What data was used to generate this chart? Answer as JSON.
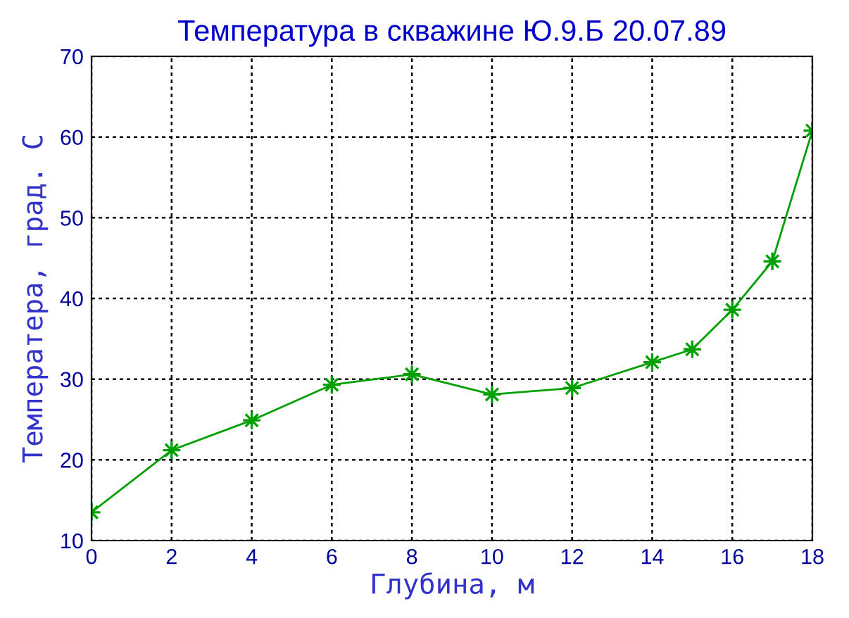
{
  "chart_data": {
    "type": "line",
    "title": "Температура в скважине Ю.9.Б 20.07.89",
    "xlabel": "Глубина, м",
    "ylabel": "Температера, град. С",
    "x": [
      0,
      2,
      4,
      6,
      8,
      10,
      12,
      14,
      15,
      16,
      17,
      18
    ],
    "series": [
      {
        "color": "#00a000",
        "values": [
          13.5,
          21.2,
          24.9,
          29.3,
          30.6,
          28.1,
          28.9,
          32.1,
          33.7,
          38.6,
          44.6,
          60.8
        ]
      }
    ],
    "xlim": [
      0,
      18
    ],
    "xticks": [
      0,
      2,
      4,
      6,
      8,
      10,
      12,
      14,
      16,
      18
    ],
    "ylim": [
      10,
      70
    ],
    "yticks": [
      10,
      20,
      30,
      40,
      50,
      60,
      70
    ],
    "grid": true,
    "marker": "star",
    "line_style": "solid"
  }
}
